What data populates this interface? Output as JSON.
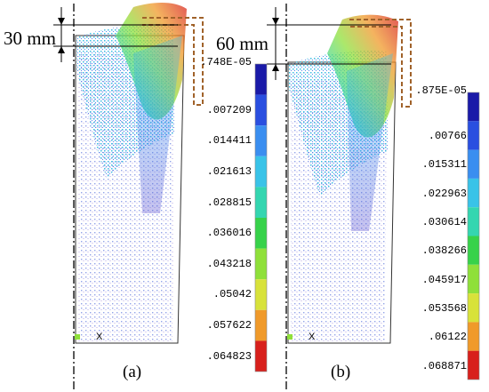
{
  "panels": [
    {
      "id": "a",
      "caption": "(a)",
      "depth_label": "30 mm",
      "axis_marker": "X",
      "legend_values": ".748E-05 .007209 .014411 .021613 .028815 .036016 .043218 .05042 .057622 .064823",
      "legend": [
        ".748E-05",
        ".007209",
        ".014411",
        ".021613",
        ".028815",
        ".036016",
        ".043218",
        ".05042",
        ".057622",
        ".064823"
      ]
    },
    {
      "id": "b",
      "caption": "(b)",
      "depth_label": "60 mm",
      "axis_marker": "X",
      "legend": [
        ".875E-05",
        ".00766",
        ".015311",
        ".022963",
        ".030614",
        ".038266",
        ".045917",
        ".053568",
        ".06122",
        ".068871"
      ]
    }
  ],
  "colors": {
    "scale": [
      "#1a1aa8",
      "#2a4fe0",
      "#3a8ef0",
      "#39c3e8",
      "#34d6b0",
      "#37d24a",
      "#8fe03a",
      "#d8e23a",
      "#f09a2a",
      "#d8201c"
    ],
    "indenter": "#a0622a"
  }
}
